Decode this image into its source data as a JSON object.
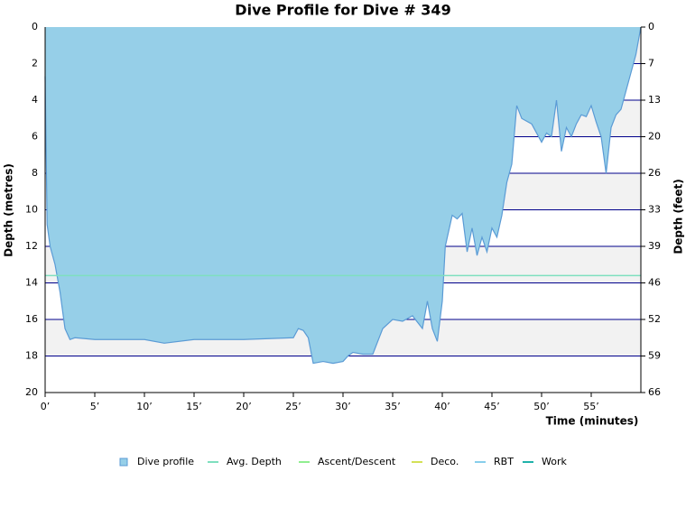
{
  "chart_data": {
    "type": "area",
    "title": "Dive Profile for Dive # 349",
    "x_label": "Time (minutes)",
    "y_label": "Depth (metres)",
    "y2_label": "Depth (feet)",
    "x": [
      0,
      0.2,
      0.5,
      1,
      1.5,
      2,
      2.5,
      3,
      5,
      10,
      12,
      15,
      20,
      25,
      25.5,
      26,
      26.5,
      27,
      28,
      29,
      30,
      30.5,
      31,
      32,
      33,
      33.5,
      34,
      35,
      36,
      37,
      38,
      38.5,
      39,
      39.5,
      40,
      40.3,
      41,
      41.5,
      42,
      42.5,
      43,
      43.5,
      44,
      44.5,
      45,
      45.5,
      46,
      46.5,
      47,
      47.5,
      48,
      49,
      50,
      50.5,
      51,
      51.5,
      52,
      52.5,
      53,
      53.5,
      54,
      54.5,
      55,
      55.5,
      56,
      56.5,
      57,
      57.5,
      58,
      58.5,
      59,
      59.5,
      60
    ],
    "series": [
      {
        "name": "Dive profile",
        "color": "#96cfe8",
        "values": [
          2.7,
          10.8,
          12,
          13,
          14.5,
          16.5,
          17.1,
          17,
          17.1,
          17.1,
          17.3,
          17.1,
          17.1,
          17,
          16.5,
          16.6,
          17,
          18.4,
          18.3,
          18.4,
          18.3,
          18,
          17.8,
          17.9,
          17.9,
          17.2,
          16.5,
          16,
          16.1,
          15.8,
          16.5,
          15,
          16.5,
          17.2,
          15,
          12,
          10.3,
          10.5,
          10.2,
          12.3,
          11,
          12.5,
          11.5,
          12.3,
          11,
          11.5,
          10.3,
          8.5,
          7.5,
          4.3,
          5,
          5.3,
          6.3,
          5.8,
          6,
          4,
          6.8,
          5.5,
          6,
          5.3,
          4.8,
          4.9,
          4.3,
          5.2,
          6,
          8,
          5.5,
          4.8,
          4.5,
          3.5,
          2.5,
          1.5,
          0
        ]
      },
      {
        "name": "Avg. Depth",
        "color": "#7fdfbf",
        "value": 13.6
      },
      {
        "name": "Ascent/Descent",
        "color": "#90ee90"
      },
      {
        "name": "Deco.",
        "color": "#d4e157"
      },
      {
        "name": "RBT",
        "color": "#87ceeb"
      },
      {
        "name": "Work",
        "color": "#20b2aa"
      }
    ],
    "xlim": [
      0,
      60
    ],
    "xticks": [
      {
        "value": 0,
        "label": "0’"
      },
      {
        "value": 5,
        "label": "5’"
      },
      {
        "value": 10,
        "label": "10’"
      },
      {
        "value": 15,
        "label": "15’"
      },
      {
        "value": 20,
        "label": "20’"
      },
      {
        "value": 25,
        "label": "25’"
      },
      {
        "value": 30,
        "label": "30’"
      },
      {
        "value": 35,
        "label": "35’"
      },
      {
        "value": 40,
        "label": "40’"
      },
      {
        "value": 45,
        "label": "45’"
      },
      {
        "value": 50,
        "label": "50’"
      },
      {
        "value": 55,
        "label": "55’"
      }
    ],
    "ylim": [
      0,
      20
    ],
    "y_inverted": true,
    "yticks": [
      0,
      2,
      4,
      6,
      8,
      10,
      12,
      14,
      16,
      18,
      20
    ],
    "y2lim": [
      0,
      65.617
    ],
    "y2ticks": [
      0,
      {
        "value": 6.562,
        "label": "7"
      },
      {
        "value": 13.123,
        "label": "13"
      },
      {
        "value": 19.685,
        "label": "20"
      },
      {
        "value": 26.247,
        "label": "26"
      },
      {
        "value": 32.808,
        "label": "33"
      },
      {
        "value": 39.37,
        "label": "39"
      },
      {
        "value": 45.932,
        "label": "46"
      },
      {
        "value": 52.493,
        "label": "52"
      },
      {
        "value": 59.055,
        "label": "59"
      },
      {
        "value": 65.617,
        "label": "66"
      }
    ],
    "grid": true,
    "grid_color": "#00008b",
    "band_color": "#f2f2f2",
    "line_color": "#5b9bd5"
  }
}
